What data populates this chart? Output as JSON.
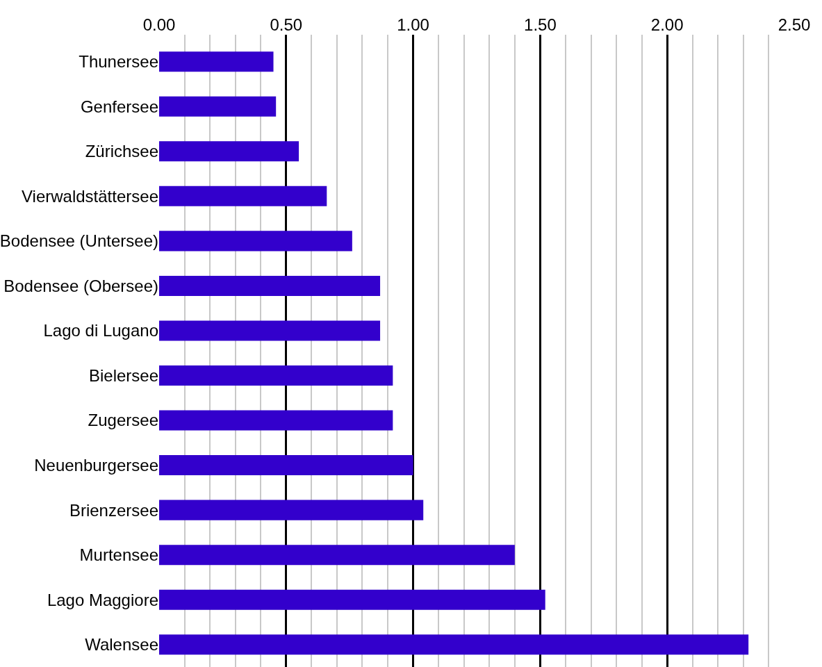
{
  "chart_data": {
    "type": "bar",
    "orientation": "horizontal",
    "categories": [
      "Thunersee",
      "Genfersee",
      "Zürichsee",
      "Vierwaldstättersee",
      "Bodensee (Untersee)",
      "Bodensee (Obersee)",
      "Lago di Lugano",
      "Bielersee",
      "Zugersee",
      "Neuenburgersee",
      "Brienzersee",
      "Murtensee",
      "Lago Maggiore",
      "Walensee"
    ],
    "values": [
      0.45,
      0.46,
      0.55,
      0.66,
      0.76,
      0.87,
      0.87,
      0.92,
      0.92,
      1.0,
      1.04,
      1.4,
      1.52,
      2.32
    ],
    "color": "#3300cc",
    "xlim": [
      0,
      2.5
    ],
    "xticks": [
      {
        "value": 0,
        "label": "0.00"
      },
      {
        "value": 0.1,
        "label": null
      },
      {
        "value": 0.2,
        "label": null
      },
      {
        "value": 0.3,
        "label": null
      },
      {
        "value": 0.4,
        "label": null
      },
      {
        "value": 0.5,
        "label": "0.50"
      },
      {
        "value": 0.6,
        "label": null
      },
      {
        "value": 0.7,
        "label": null
      },
      {
        "value": 0.8,
        "label": null
      },
      {
        "value": 0.9,
        "label": null
      },
      {
        "value": 1.0,
        "label": "1.00"
      },
      {
        "value": 1.1,
        "label": null
      },
      {
        "value": 1.2,
        "label": null
      },
      {
        "value": 1.3,
        "label": null
      },
      {
        "value": 1.4,
        "label": null
      },
      {
        "value": 1.5,
        "label": "1.50"
      },
      {
        "value": 1.6,
        "label": null
      },
      {
        "value": 1.7,
        "label": null
      },
      {
        "value": 1.8,
        "label": null
      },
      {
        "value": 1.9,
        "label": null
      },
      {
        "value": 2.0,
        "label": "2.00"
      },
      {
        "value": 2.1,
        "label": null
      },
      {
        "value": 2.2,
        "label": null
      },
      {
        "value": 2.3,
        "label": null
      },
      {
        "value": 2.4,
        "label": null
      },
      {
        "value": 2.5,
        "label": "2.50"
      }
    ],
    "grid": "x",
    "legend": false
  }
}
